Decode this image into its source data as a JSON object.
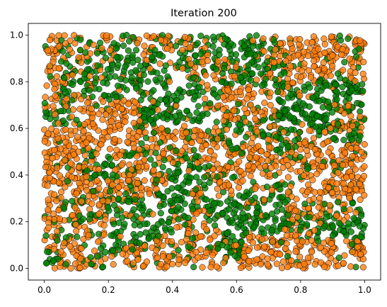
{
  "chart_data": {
    "type": "scatter",
    "title": "Iteration 200",
    "xlabel": "",
    "ylabel": "",
    "xlim": [
      -0.05,
      1.05
    ],
    "ylim": [
      -0.05,
      1.05
    ],
    "x_ticks": [
      0.0,
      0.2,
      0.4,
      0.6,
      0.8,
      1.0
    ],
    "x_tick_labels": [
      "0.0",
      "0.2",
      "0.4",
      "0.6",
      "0.8",
      "1.0"
    ],
    "y_ticks": [
      0.0,
      0.2,
      0.4,
      0.6,
      0.8,
      1.0
    ],
    "y_tick_labels": [
      "0.0",
      "0.2",
      "0.4",
      "0.6",
      "0.8",
      "1.0"
    ],
    "grid": false,
    "legend": "none",
    "colors": {
      "orange": "#ff7f0e",
      "green": "#008000",
      "edge": "#000000"
    },
    "series": [
      {
        "color": "orange",
        "regions": [
          {
            "x": [
              0.0,
              0.18
            ],
            "y": [
              0.0,
              1.0
            ]
          },
          {
            "x": [
              0.18,
              0.3
            ],
            "y": [
              0.5,
              0.72
            ]
          },
          {
            "x": [
              0.07,
              0.22
            ],
            "y": [
              0.88,
              1.0
            ]
          },
          {
            "x": [
              0.28,
              0.34
            ],
            "y": [
              0.9,
              1.0
            ]
          },
          {
            "x": [
              0.35,
              0.55
            ],
            "y": [
              0.45,
              0.62
            ]
          },
          {
            "x": [
              0.45,
              0.6
            ],
            "y": [
              0.8,
              0.92
            ]
          },
          {
            "x": [
              0.55,
              0.72
            ],
            "y": [
              0.65,
              0.78
            ]
          },
          {
            "x": [
              0.68,
              1.0
            ],
            "y": [
              0.8,
              1.0
            ]
          },
          {
            "x": [
              0.62,
              0.82
            ],
            "y": [
              0.38,
              0.62
            ]
          },
          {
            "x": [
              0.8,
              1.0
            ],
            "y": [
              0.2,
              0.55
            ]
          },
          {
            "x": [
              0.25,
              0.55
            ],
            "y": [
              0.0,
              0.08
            ]
          },
          {
            "x": [
              0.62,
              0.85
            ],
            "y": [
              0.0,
              0.15
            ]
          },
          {
            "x": [
              0.85,
              1.0
            ],
            "y": [
              0.0,
              0.12
            ]
          },
          {
            "x": [
              0.4,
              0.55
            ],
            "y": [
              0.12,
              0.25
            ]
          },
          {
            "x": [
              0.28,
              0.36
            ],
            "y": [
              0.28,
              0.42
            ]
          },
          {
            "x": [
              0.9,
              1.0
            ],
            "y": [
              0.58,
              0.72
            ]
          },
          {
            "x": [
              0.52,
              0.62
            ],
            "y": [
              0.3,
              0.45
            ]
          }
        ]
      },
      {
        "color": "green",
        "regions": [
          {
            "x": [
              0.05,
              0.3
            ],
            "y": [
              0.72,
              0.98
            ]
          },
          {
            "x": [
              0.3,
              0.5
            ],
            "y": [
              0.62,
              0.92
            ]
          },
          {
            "x": [
              0.5,
              0.72
            ],
            "y": [
              0.85,
              1.0
            ]
          },
          {
            "x": [
              0.55,
              0.75
            ],
            "y": [
              0.78,
              0.88
            ]
          },
          {
            "x": [
              0.85,
              1.0
            ],
            "y": [
              0.55,
              0.82
            ]
          },
          {
            "x": [
              0.72,
              0.88
            ],
            "y": [
              0.6,
              0.75
            ]
          },
          {
            "x": [
              0.38,
              0.5
            ],
            "y": [
              0.35,
              0.5
            ]
          },
          {
            "x": [
              0.5,
              0.75
            ],
            "y": [
              0.15,
              0.32
            ]
          },
          {
            "x": [
              0.22,
              0.35
            ],
            "y": [
              0.1,
              0.3
            ]
          },
          {
            "x": [
              0.0,
              0.08
            ],
            "y": [
              0.0,
              0.15
            ]
          },
          {
            "x": [
              0.12,
              0.22
            ],
            "y": [
              0.38,
              0.5
            ]
          },
          {
            "x": [
              0.6,
              0.8
            ],
            "y": [
              0.5,
              0.62
            ]
          },
          {
            "x": [
              0.8,
              1.0
            ],
            "y": [
              0.12,
              0.28
            ]
          },
          {
            "x": [
              0.35,
              0.45
            ],
            "y": [
              0.15,
              0.35
            ]
          },
          {
            "x": [
              0.05,
              0.15
            ],
            "y": [
              0.15,
              0.3
            ]
          },
          {
            "x": [
              0.12,
              0.2
            ],
            "y": [
              0.0,
              0.12
            ]
          },
          {
            "x": [
              0.55,
              0.62
            ],
            "y": [
              0.05,
              0.15
            ]
          },
          {
            "x": [
              0.0,
              0.08
            ],
            "y": [
              0.6,
              0.72
            ]
          }
        ]
      }
    ]
  }
}
